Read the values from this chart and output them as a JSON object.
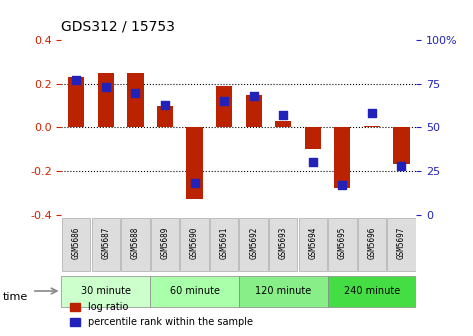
{
  "title": "GDS312 / 15753",
  "samples": [
    "GSM5686",
    "GSM5687",
    "GSM5688",
    "GSM5689",
    "GSM5690",
    "GSM5691",
    "GSM5692",
    "GSM5693",
    "GSM5694",
    "GSM5695",
    "GSM5696",
    "GSM5697"
  ],
  "log_ratios": [
    0.23,
    0.25,
    0.25,
    0.1,
    -0.33,
    0.19,
    0.15,
    0.03,
    -0.1,
    -0.28,
    0.005,
    -0.17
  ],
  "percentiles": [
    0.77,
    0.73,
    0.7,
    0.63,
    0.18,
    0.65,
    0.68,
    0.57,
    0.3,
    0.17,
    0.58,
    0.28
  ],
  "bar_color": "#bb2200",
  "dot_color": "#2222bb",
  "ylim": [
    -0.4,
    0.4
  ],
  "yticks": [
    -0.4,
    -0.2,
    0.0,
    0.2,
    0.4
  ],
  "y2ticks": [
    0,
    25,
    50,
    75,
    100
  ],
  "groups": [
    {
      "label": "30 minute",
      "start": 0,
      "end": 3,
      "color": "#ccffcc"
    },
    {
      "label": "60 minute",
      "start": 3,
      "end": 6,
      "color": "#aaffaa"
    },
    {
      "label": "120 minute",
      "start": 6,
      "end": 9,
      "color": "#88ee88"
    },
    {
      "label": "240 minute",
      "start": 9,
      "end": 12,
      "color": "#44dd44"
    }
  ],
  "xlabel_time": "time",
  "legend_log_ratio": "log ratio",
  "legend_percentile": "percentile rank within the sample",
  "title_color": "#000000",
  "left_axis_color": "#cc2200",
  "right_axis_color": "#2222bb",
  "bar_width": 0.55
}
